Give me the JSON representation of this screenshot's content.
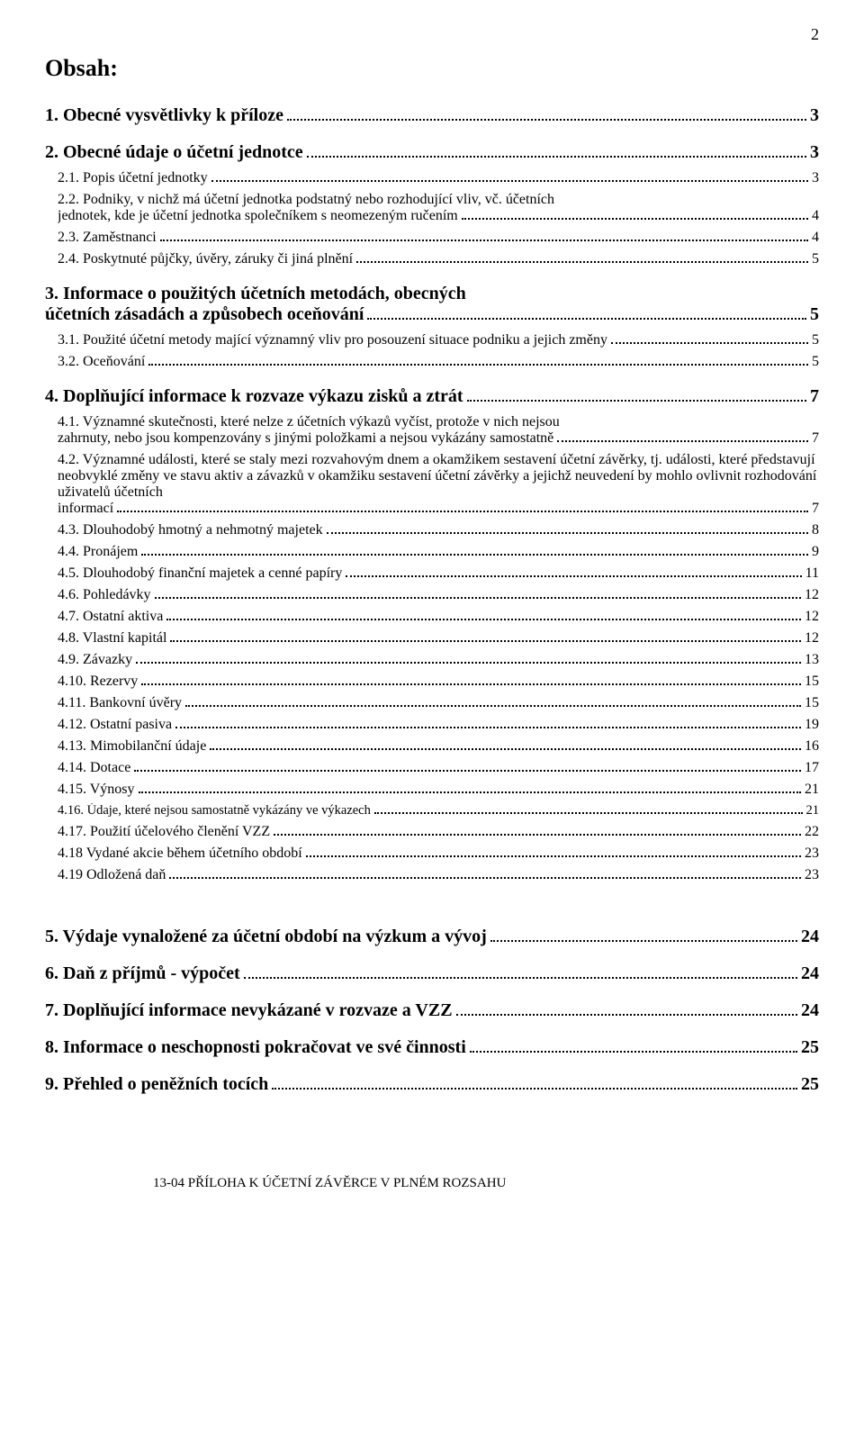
{
  "page_number": "2",
  "title": "Obsah:",
  "entries": [
    {
      "lvl": 1,
      "text": "1. Obecné vysvětlivky k příloze",
      "page": "3"
    },
    {
      "lvl": 1,
      "text": "2. Obecné údaje o účetní jednotce",
      "page": "3"
    },
    {
      "lvl": 2,
      "text": "2.1. Popis účetní jednotky",
      "page": "3"
    },
    {
      "lvl": 2,
      "multi": true,
      "pre": "2.2. Podniky, v nichž má účetní jednotka podstatný nebo rozhodující vliv, vč. účetních",
      "text": "jednotek, kde je účetní jednotka společníkem s neomezeným ručením",
      "page": "4"
    },
    {
      "lvl": 2,
      "text": "2.3. Zaměstnanci",
      "page": "4"
    },
    {
      "lvl": 2,
      "text": "2.4. Poskytnuté půjčky, úvěry, záruky či jiná plnění",
      "page": "5"
    },
    {
      "lvl": 1,
      "multi": true,
      "pre": "3. Informace o použitých účetních metodách, obecných",
      "text": "účetních zásadách a  způsobech oceňování",
      "page": "5"
    },
    {
      "lvl": 2,
      "text": "3.1. Použité účetní metody mající významný vliv pro posouzení situace podniku a jejich změny",
      "page": "5"
    },
    {
      "lvl": 2,
      "text": "3.2. Oceňování",
      "page": "5"
    },
    {
      "lvl": 1,
      "text": "4. Doplňující informace k rozvaze výkazu zisků a ztrát",
      "page": "7"
    },
    {
      "lvl": 2,
      "multi": true,
      "pre": "4.1. Významné skutečnosti, které nelze z účetních výkazů vyčíst, protože v nich nejsou",
      "text": "zahrnuty, nebo jsou kompenzovány s jinými položkami a nejsou vykázány samostatně",
      "page": "7"
    },
    {
      "lvl": 2,
      "multi": true,
      "pre": "4.2. Významné události, které se staly mezi rozvahovým dnem a okamžikem sestavení účetní závěrky, tj. události, které představují neobvyklé změny ve stavu aktiv a závazků v okamžiku sestavení účetní závěrky a jejichž neuvedení by mohlo ovlivnit rozhodování uživatelů účetních",
      "text": "informací",
      "page": "7"
    },
    {
      "lvl": 2,
      "text": "4.3. Dlouhodobý hmotný a nehmotný majetek",
      "page": "8"
    },
    {
      "lvl": 2,
      "text": "4.4. Pronájem",
      "page": "9"
    },
    {
      "lvl": 2,
      "text": "4.5. Dlouhodobý finanční majetek a cenné papíry",
      "page": "11"
    },
    {
      "lvl": 2,
      "text": "4.6. Pohledávky",
      "page": "12"
    },
    {
      "lvl": 2,
      "text": "4.7. Ostatní aktiva",
      "page": "12"
    },
    {
      "lvl": 2,
      "text": "4.8. Vlastní kapitál",
      "page": "12"
    },
    {
      "lvl": 2,
      "text": "4.9. Závazky",
      "page": "13"
    },
    {
      "lvl": 2,
      "text": "4.10. Rezervy",
      "page": "15"
    },
    {
      "lvl": 2,
      "text": "4.11. Bankovní úvěry",
      "page": "15"
    },
    {
      "lvl": 2,
      "text": "4.12. Ostatní pasiva",
      "page": "19"
    },
    {
      "lvl": 2,
      "text": "4.13. Mimobilanční údaje",
      "page": "16"
    },
    {
      "lvl": 2,
      "text": "4.14. Dotace",
      "page": "17"
    },
    {
      "lvl": 2,
      "text": "4.15. Výnosy",
      "page": "21"
    },
    {
      "lvl": "2-small",
      "text": "4.16. Údaje, které nejsou samostatně vykázány ve výkazech",
      "page": "21"
    },
    {
      "lvl": 2,
      "text": "4.17. Použití účelového členění VZZ",
      "page": "22"
    },
    {
      "lvl": 2,
      "text": "4.18  Vydané akcie během účetního období",
      "page": "23"
    },
    {
      "lvl": 2,
      "text": " 4.19 Odložená daň",
      "page": "23"
    },
    {
      "lvl": "spacer"
    },
    {
      "lvl": 1,
      "text": "5. Výdaje vynaložené za účetní období na výzkum a vývoj",
      "page": "24"
    },
    {
      "lvl": 1,
      "text": "6. Daň z příjmů - výpočet",
      "page": "24"
    },
    {
      "lvl": 1,
      "text": "7. Doplňující informace nevykázané v rozvaze a VZZ",
      "page": "24"
    },
    {
      "lvl": 1,
      "text": "8. Informace o neschopnosti pokračovat ve své činnosti",
      "page": "25"
    },
    {
      "lvl": 1,
      "text": "9. Přehled o peněžních tocích",
      "page": "25"
    }
  ],
  "footer": "13-04  PŘÍLOHA K ÚČETNÍ ZÁVĚRCE V PLNÉM ROZSAHU"
}
